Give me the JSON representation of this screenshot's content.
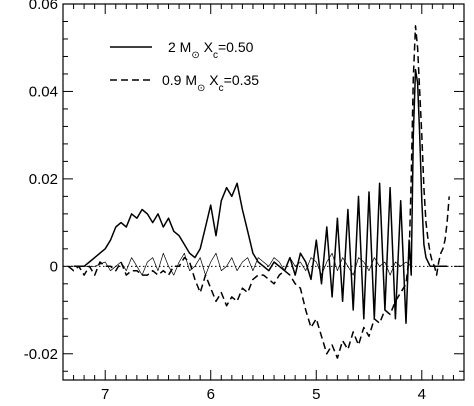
{
  "chart_data": {
    "type": "line",
    "title": "",
    "xlabel": "",
    "ylabel": "",
    "x_reversed": true,
    "xlim": [
      7.4,
      3.6
    ],
    "ylim": [
      -0.026,
      0.06
    ],
    "x_ticks": [
      7,
      6,
      5,
      4
    ],
    "x_tick_labels": [
      "7",
      "6",
      "5",
      "4"
    ],
    "y_ticks": [
      -0.02,
      0,
      0.02,
      0.04,
      0.06
    ],
    "y_tick_labels": [
      "-0.02",
      "0",
      "0.02",
      "0.04",
      "0.06"
    ],
    "zero_line": "dotted",
    "legend": {
      "placement": "top-left",
      "entries": [
        {
          "style": "solid",
          "prefix": "2 M",
          "suffix": " X",
          "sub": "c",
          "value": "=0.50"
        },
        {
          "style": "dashed",
          "prefix": "0.9 M",
          "suffix": " X",
          "sub": "c",
          "value": "=0.35"
        }
      ],
      "sun_symbol": "⊙"
    },
    "series": [
      {
        "style": "solid",
        "x": [
          7.3,
          7.25,
          7.2,
          7.15,
          7.1,
          7.05,
          7.0,
          6.95,
          6.9,
          6.85,
          6.8,
          6.75,
          6.7,
          6.65,
          6.6,
          6.55,
          6.5,
          6.45,
          6.4,
          6.35,
          6.3,
          6.25,
          6.2,
          6.15,
          6.1,
          6.05,
          6.0,
          5.95,
          5.9,
          5.85,
          5.8,
          5.75,
          5.7,
          5.65,
          5.6,
          5.55,
          5.5,
          5.45,
          5.4,
          5.35,
          5.3,
          5.25,
          5.2,
          5.15,
          5.1,
          5.05,
          5.0,
          4.95,
          4.9,
          4.85,
          4.8,
          4.75,
          4.7,
          4.65,
          4.6,
          4.55,
          4.5,
          4.45,
          4.4,
          4.35,
          4.3,
          4.25,
          4.2,
          4.15,
          4.12,
          4.1,
          4.08,
          4.06,
          4.04,
          4.02,
          4.0,
          3.98,
          3.96,
          3.94,
          3.92,
          3.9,
          3.88,
          3.86,
          3.84,
          3.82,
          3.8,
          3.78,
          3.76
        ],
        "y": [
          0.0,
          0.0,
          0.0,
          0.001,
          0.002,
          0.003,
          0.004,
          0.006,
          0.009,
          0.01,
          0.009,
          0.012,
          0.011,
          0.013,
          0.012,
          0.01,
          0.012,
          0.009,
          0.011,
          0.008,
          0.007,
          0.005,
          0.003,
          0.002,
          0.004,
          0.009,
          0.014,
          0.007,
          0.015,
          0.018,
          0.016,
          0.019,
          0.013,
          0.008,
          0.003,
          0.001,
          0.0,
          -0.001,
          0.001,
          0.0,
          -0.001,
          0.002,
          -0.002,
          0.003,
          0.001,
          -0.003,
          0.006,
          -0.004,
          0.009,
          -0.007,
          0.011,
          -0.008,
          0.013,
          -0.01,
          0.016,
          -0.012,
          0.017,
          -0.012,
          0.019,
          -0.01,
          0.018,
          -0.012,
          0.015,
          -0.013,
          0.006,
          -0.002,
          0.03,
          0.045,
          0.042,
          0.03,
          0.015,
          0.005,
          0.002,
          0.001,
          0.0,
          0.0,
          0.0,
          0.0,
          0.0,
          0.0,
          0.0,
          0.0,
          0.0
        ]
      },
      {
        "style": "dashed",
        "x": [
          7.35,
          7.3,
          7.25,
          7.2,
          7.15,
          7.1,
          7.05,
          7.0,
          6.95,
          6.9,
          6.85,
          6.8,
          6.75,
          6.7,
          6.65,
          6.6,
          6.55,
          6.5,
          6.45,
          6.4,
          6.35,
          6.3,
          6.25,
          6.2,
          6.15,
          6.1,
          6.05,
          6.0,
          5.95,
          5.9,
          5.85,
          5.8,
          5.75,
          5.7,
          5.65,
          5.6,
          5.55,
          5.5,
          5.45,
          5.4,
          5.35,
          5.3,
          5.25,
          5.2,
          5.15,
          5.1,
          5.05,
          5.0,
          4.95,
          4.9,
          4.85,
          4.8,
          4.75,
          4.7,
          4.65,
          4.6,
          4.55,
          4.5,
          4.45,
          4.4,
          4.35,
          4.3,
          4.25,
          4.2,
          4.15,
          4.12,
          4.1,
          4.08,
          4.06,
          4.04,
          4.02,
          4.0,
          3.98,
          3.96,
          3.94,
          3.92,
          3.9,
          3.88,
          3.86,
          3.84,
          3.82,
          3.8,
          3.78,
          3.76,
          3.74
        ],
        "y": [
          0.0,
          -0.001,
          0.0,
          -0.002,
          0.0,
          -0.002,
          0.001,
          0.0,
          0.0,
          -0.001,
          0.001,
          -0.002,
          -0.001,
          -0.001,
          -0.002,
          -0.002,
          -0.001,
          -0.002,
          -0.001,
          -0.002,
          0.0,
          0.0,
          0.002,
          0.001,
          -0.003,
          -0.006,
          -0.002,
          -0.005,
          -0.008,
          -0.006,
          -0.009,
          -0.007,
          -0.008,
          -0.005,
          -0.006,
          -0.003,
          -0.002,
          -0.002,
          -0.003,
          -0.004,
          -0.002,
          -0.001,
          -0.002,
          -0.004,
          -0.005,
          -0.01,
          -0.014,
          -0.012,
          -0.016,
          -0.02,
          -0.018,
          -0.021,
          -0.017,
          -0.019,
          -0.015,
          -0.018,
          -0.014,
          -0.016,
          -0.012,
          -0.013,
          -0.01,
          -0.011,
          -0.008,
          -0.006,
          -0.004,
          0.002,
          0.02,
          0.043,
          0.055,
          0.05,
          0.04,
          0.03,
          0.018,
          0.01,
          0.006,
          0.003,
          0.001,
          0.0,
          -0.002,
          0.001,
          0.003,
          0.004,
          0.006,
          0.01,
          0.016
        ]
      },
      {
        "style": "thin",
        "x": [
          7.2,
          7.1,
          7.0,
          6.95,
          6.9,
          6.85,
          6.8,
          6.75,
          6.7,
          6.65,
          6.6,
          6.55,
          6.5,
          6.45,
          6.4,
          6.35,
          6.3,
          6.25,
          6.2,
          6.15,
          6.1,
          6.05,
          6.0,
          5.95,
          5.9,
          5.85,
          5.8,
          5.75,
          5.7,
          5.65,
          5.6,
          5.55,
          5.5,
          5.45,
          5.4,
          5.35,
          5.3,
          5.25,
          5.2,
          5.15,
          5.1,
          5.05,
          5.0,
          4.95,
          4.9,
          4.85,
          4.8,
          4.75,
          4.7,
          4.65,
          4.6,
          4.55,
          4.5,
          4.45,
          4.4,
          4.35,
          4.3,
          4.25,
          4.2,
          4.15,
          4.1
        ],
        "y": [
          0.0,
          0.0,
          0.001,
          -0.001,
          0.0,
          0.001,
          -0.001,
          0.002,
          0.0,
          -0.002,
          0.001,
          0.002,
          -0.001,
          0.003,
          0.0,
          -0.002,
          0.001,
          0.003,
          -0.001,
          0.0,
          0.002,
          -0.002,
          0.001,
          0.003,
          -0.001,
          0.0,
          0.002,
          -0.001,
          0.001,
          0.002,
          -0.001,
          0.002,
          0.001,
          0.0,
          0.002,
          0.001,
          -0.001,
          0.002,
          0.0,
          0.001,
          -0.001,
          0.002,
          0.001,
          -0.002,
          0.001,
          0.003,
          -0.001,
          0.002,
          0.0,
          -0.002,
          0.002,
          0.001,
          -0.001,
          0.002,
          0.0,
          0.001,
          -0.002,
          0.001,
          0.0,
          0.001,
          0.0
        ]
      }
    ]
  }
}
